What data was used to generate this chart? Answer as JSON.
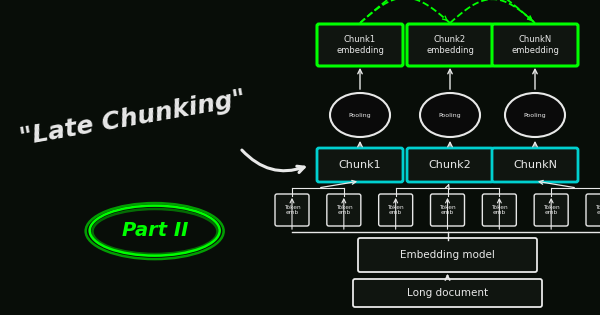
{
  "bg_color": "#080d08",
  "title_text": "\"Late Chunking\"",
  "title_color": "#ffffff",
  "title_fontsize": 18,
  "part_text": "Part II",
  "part_color": "#00ff00",
  "green": "#00ff00",
  "cyan": "#00d0d0",
  "white": "#e8e8e8",
  "dark_box": "#101510",
  "chunk_labels": [
    "Chunk1",
    "Chunk2",
    "ChunkN"
  ],
  "embed_labels": [
    "Chunk1\nembedding",
    "Chunk2\nembedding",
    "ChunkN\nembedding"
  ],
  "pool_label": "Pooling",
  "token_label": "Token\nemb",
  "embed_model_label": "Embedding model",
  "long_doc_label": "Long document",
  "n_tokens": 7,
  "fig_w": 6.0,
  "fig_h": 3.15,
  "dpi": 100
}
